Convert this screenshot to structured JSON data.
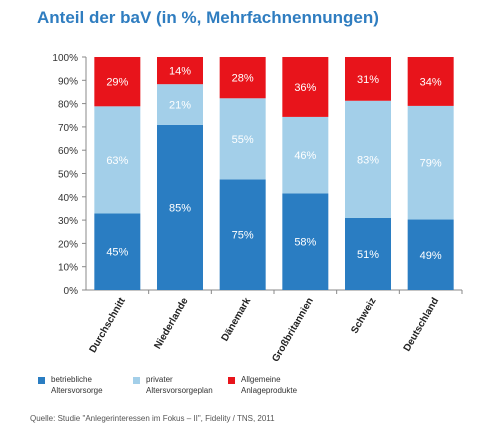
{
  "title": "Anteil der baV (in %, Mehrfachnennungen)",
  "source": "Quelle:  Studie \"Anlegerinteressen im Fokus – II\", Fidelity / TNS, 2011",
  "chart_data": {
    "type": "bar",
    "stacked": true,
    "normalized": true,
    "categories": [
      "Durchschnitt",
      "Niederlande",
      "Dänemark",
      "Großbritannien",
      "Schweiz",
      "Deutschland"
    ],
    "series": [
      {
        "name": "betriebliche Altersvorsorge",
        "color": "#2a7dc2",
        "values": [
          45,
          85,
          75,
          58,
          51,
          49
        ],
        "labels": [
          "45%",
          "85%",
          "75%",
          "58%",
          "51%",
          "49%"
        ]
      },
      {
        "name": "privater Altersvorsorgeplan",
        "color": "#a3cfe9",
        "values": [
          63,
          21,
          55,
          46,
          83,
          79
        ],
        "labels": [
          "63%",
          "21%",
          "55%",
          "46%",
          "83%",
          "79%"
        ]
      },
      {
        "name": "Allgemeine Anlageprodukte",
        "color": "#e8141b",
        "values": [
          29,
          14,
          28,
          36,
          31,
          34
        ],
        "labels": [
          "29%",
          "14%",
          "28%",
          "36%",
          "31%",
          "34%"
        ]
      }
    ],
    "ylim": [
      0,
      100
    ],
    "yticks": [
      "0%",
      "10%",
      "20%",
      "30%",
      "40%",
      "50%",
      "60%",
      "70%",
      "80%",
      "90%",
      "100%"
    ],
    "grid": false,
    "legend_position": "bottom"
  },
  "legend": [
    {
      "line1": "betriebliche",
      "line2": "Altersvorsorge",
      "color": "#2a7dc2"
    },
    {
      "line1": "privater",
      "line2": "Altersvorsorgeplan",
      "color": "#a3cfe9"
    },
    {
      "line1": "Allgemeine",
      "line2": "Anlageprodukte",
      "color": "#e8141b"
    }
  ]
}
